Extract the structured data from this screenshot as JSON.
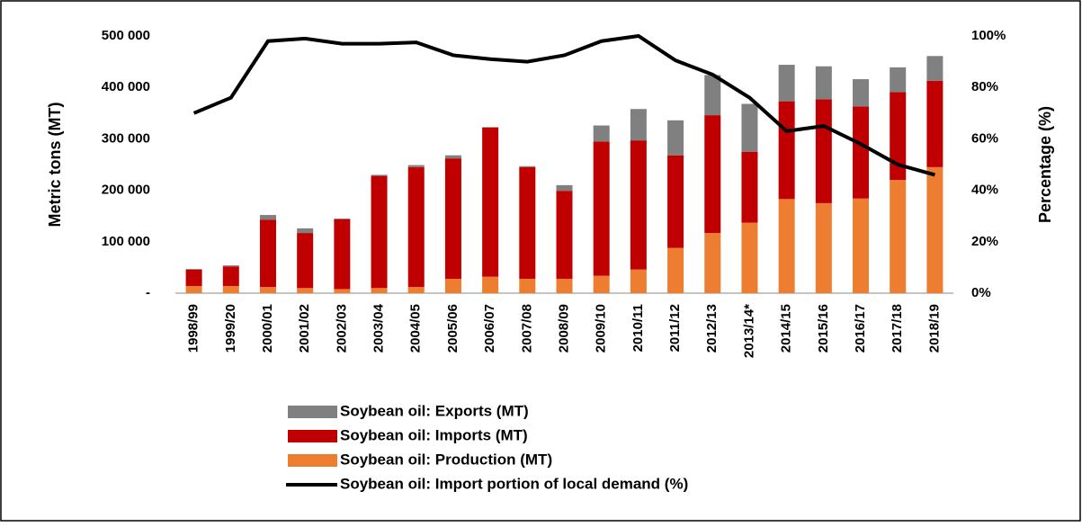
{
  "chart_data": {
    "type": "bar",
    "categories": [
      "1998/99",
      "1999/20",
      "2000/01",
      "2001/02",
      "2002/03",
      "2003/04",
      "2004/05",
      "2005/06",
      "2006/07",
      "2007/08",
      "2008/09",
      "2009/10",
      "2010/11",
      "2011/12",
      "2012/13",
      "2013/14*",
      "2014/15",
      "2015/16",
      "2016/17",
      "2017/18",
      "2018/19"
    ],
    "stacked": true,
    "series": [
      {
        "name": "Soybean oil: Exports (MT)",
        "color": "#808080",
        "values": [
          1000,
          2000,
          9000,
          9000,
          1000,
          2000,
          4000,
          6000,
          1000,
          2000,
          11000,
          31000,
          61000,
          68000,
          78000,
          93000,
          71000,
          64000,
          53000,
          48000,
          48000
        ]
      },
      {
        "name": "Soybean oil: Imports (MT)",
        "color": "#c00000",
        "values": [
          32000,
          38000,
          131000,
          107000,
          136000,
          218000,
          233000,
          234000,
          290000,
          217000,
          171000,
          261000,
          251000,
          180000,
          229000,
          138000,
          190000,
          202000,
          179000,
          171000,
          168000
        ]
      },
      {
        "name": "Soybean oil: Production (MT)",
        "color": "#ed7d31",
        "values": [
          14000,
          14000,
          12000,
          10000,
          8000,
          10000,
          12000,
          28000,
          32000,
          28000,
          28000,
          34000,
          46000,
          88000,
          117000,
          137000,
          183000,
          175000,
          184000,
          220000,
          245000
        ]
      },
      {
        "name": "Soybean oil: Import portion of local demand (%)",
        "color": "#000000",
        "type": "line",
        "axis": "y2",
        "values": [
          70,
          76,
          98,
          99,
          97,
          97,
          97.5,
          92.5,
          91,
          90,
          92.5,
          98,
          100,
          90.5,
          85,
          76,
          63,
          65,
          58,
          50,
          46
        ]
      }
    ],
    "ylabel": "Metric tons (MT)",
    "y2label": "Percentage (%)",
    "ylim": [
      0,
      500000
    ],
    "yticks": [
      {
        "value": 0,
        "label": "-"
      },
      {
        "value": 100000,
        "label": "100 000"
      },
      {
        "value": 200000,
        "label": "200 000"
      },
      {
        "value": 300000,
        "label": "300 000"
      },
      {
        "value": 400000,
        "label": "400 000"
      },
      {
        "value": 500000,
        "label": "500 000"
      }
    ],
    "y2lim": [
      0,
      100
    ],
    "y2ticks": [
      {
        "value": 0,
        "label": "0%"
      },
      {
        "value": 20,
        "label": "20%"
      },
      {
        "value": 40,
        "label": "40%"
      },
      {
        "value": 60,
        "label": "60%"
      },
      {
        "value": 80,
        "label": "80%"
      },
      {
        "value": 100,
        "label": "100%"
      }
    ],
    "legend": "bottom"
  }
}
